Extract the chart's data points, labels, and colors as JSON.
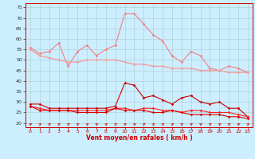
{
  "x": [
    0,
    1,
    2,
    3,
    4,
    5,
    6,
    7,
    8,
    9,
    10,
    11,
    12,
    13,
    14,
    15,
    16,
    17,
    18,
    19,
    20,
    21,
    22,
    23
  ],
  "series": [
    {
      "name": "rafales_max",
      "color": "#f08080",
      "lw": 0.8,
      "marker": "D",
      "markersize": 1.8,
      "values": [
        56,
        53,
        54,
        58,
        47,
        54,
        57,
        52,
        55,
        57,
        72,
        72,
        67,
        62,
        59,
        52,
        49,
        54,
        52,
        46,
        45,
        47,
        46,
        44
      ]
    },
    {
      "name": "rafales_avg",
      "color": "#f0a0a0",
      "lw": 1.0,
      "marker": "D",
      "markersize": 1.8,
      "values": [
        55,
        52,
        51,
        50,
        49,
        49,
        50,
        50,
        50,
        50,
        49,
        48,
        48,
        47,
        47,
        46,
        46,
        46,
        45,
        45,
        45,
        44,
        44,
        44
      ]
    },
    {
      "name": "vent_max",
      "color": "#cc0000",
      "lw": 0.8,
      "marker": "D",
      "markersize": 1.8,
      "values": [
        29,
        29,
        27,
        27,
        27,
        27,
        27,
        27,
        27,
        28,
        39,
        38,
        32,
        33,
        31,
        29,
        32,
        33,
        30,
        29,
        30,
        27,
        27,
        23
      ]
    },
    {
      "name": "vent_avg",
      "color": "#ff2020",
      "lw": 0.8,
      "marker": "D",
      "markersize": 1.8,
      "values": [
        28,
        27,
        26,
        26,
        26,
        26,
        26,
        26,
        26,
        27,
        27,
        26,
        27,
        27,
        26,
        26,
        25,
        26,
        26,
        25,
        25,
        25,
        24,
        23
      ]
    },
    {
      "name": "vent_min",
      "color": "#dd0000",
      "lw": 0.8,
      "marker": "D",
      "markersize": 1.8,
      "values": [
        28,
        26,
        26,
        26,
        26,
        25,
        25,
        25,
        25,
        27,
        26,
        26,
        26,
        25,
        25,
        26,
        25,
        24,
        24,
        24,
        24,
        23,
        23,
        22
      ]
    }
  ],
  "xlim": [
    -0.5,
    23.5
  ],
  "ylim": [
    18,
    77
  ],
  "yticks": [
    20,
    25,
    30,
    35,
    40,
    45,
    50,
    55,
    60,
    65,
    70,
    75
  ],
  "xticks": [
    0,
    1,
    2,
    3,
    4,
    5,
    6,
    7,
    8,
    9,
    10,
    11,
    12,
    13,
    14,
    15,
    16,
    17,
    18,
    19,
    20,
    21,
    22,
    23
  ],
  "xlabel": "Vent moyen/en rafales ( km/h )",
  "bg_color": "#cceeff",
  "grid_color": "#aacccc",
  "arrow_color": "#cc0000"
}
